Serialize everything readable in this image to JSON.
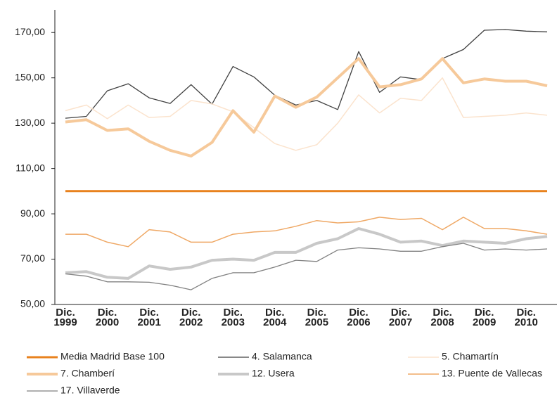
{
  "chart_data": {
    "type": "line",
    "categories": [
      "Dic. 1999",
      null,
      "Dic. 2000",
      null,
      "Dic. 2001",
      null,
      "Dic. 2002",
      null,
      "Dic. 2003",
      null,
      "Dic. 2004",
      null,
      "Dic. 2005",
      null,
      "Dic. 2006",
      null,
      "Dic. 2007",
      null,
      "Dic. 2008",
      null,
      "Dic. 2009",
      null,
      "Dic. 2010",
      null
    ],
    "ylim": [
      50,
      180
    ],
    "yticks": [
      {
        "value": 50,
        "label": "50,00"
      },
      {
        "value": 70,
        "label": "70,00"
      },
      {
        "value": 90,
        "label": "90,00"
      },
      {
        "value": 110,
        "label": "110,00"
      },
      {
        "value": 130,
        "label": "130,00"
      },
      {
        "value": 150,
        "label": "150,00"
      },
      {
        "value": 170,
        "label": "170,00"
      }
    ],
    "grid": false,
    "series": [
      {
        "name": "Media Madrid Base 100",
        "color": "#e8821e",
        "width": 3,
        "values": [
          100,
          100,
          100,
          100,
          100,
          100,
          100,
          100,
          100,
          100,
          100,
          100,
          100,
          100,
          100,
          100,
          100,
          100,
          100,
          100,
          100,
          100,
          100,
          100
        ]
      },
      {
        "name": "4. Salamanca",
        "color": "#404040",
        "width": 1.3,
        "values": [
          132.2,
          133,
          144.3,
          147.4,
          141.2,
          138.7,
          147,
          138.4,
          155,
          150.4,
          142.3,
          138,
          140,
          136,
          161.6,
          143.6,
          150.4,
          149.2,
          158.5,
          162.5,
          171,
          171.3,
          170.6,
          170.3
        ]
      },
      {
        "name": "5. Chamartín",
        "color": "#fbe3cd",
        "width": 1.5,
        "values": [
          135.5,
          138,
          132,
          138,
          132.5,
          133,
          140,
          138.5,
          135,
          128,
          121,
          118,
          120.5,
          130,
          142.5,
          134.5,
          141,
          140,
          150,
          132.5,
          133,
          133.5,
          134.5,
          133.5
        ]
      },
      {
        "name": "7. Chamberí",
        "color": "#f6c99a",
        "width": 4,
        "values": [
          130.5,
          131.5,
          126.8,
          127.5,
          122,
          118,
          115.5,
          121.5,
          135.5,
          126,
          142,
          137,
          141.5,
          150,
          158.5,
          146,
          147,
          149.5,
          158.5,
          147.8,
          149.5,
          148.5,
          148.5,
          146.5
        ]
      },
      {
        "name": "12. Usera",
        "color": "#c8c8c8",
        "width": 4,
        "values": [
          64,
          64.5,
          62,
          61.5,
          67,
          65.5,
          66.5,
          69.5,
          70,
          69.5,
          73,
          73,
          77,
          79,
          83.5,
          81,
          77.5,
          78,
          76,
          78,
          77.5,
          77,
          79,
          80
        ]
      },
      {
        "name": "13. Puente de Vallecas",
        "color": "#efa865",
        "width": 1.5,
        "values": [
          81,
          81,
          77.5,
          75.5,
          83,
          82,
          77.5,
          77.5,
          81,
          82,
          82.5,
          84.5,
          87,
          86,
          86.5,
          88.5,
          87.5,
          88,
          83,
          88.5,
          83.5,
          83.5,
          82.5,
          81
        ]
      },
      {
        "name": "17. Villaverde",
        "color": "#808080",
        "width": 1.3,
        "values": [
          63.5,
          62.5,
          60,
          60,
          59.8,
          58.5,
          56.5,
          61.5,
          64,
          64,
          66.5,
          69.5,
          69,
          74,
          75,
          74.5,
          73.5,
          73.5,
          75.5,
          77,
          74,
          74.5,
          74,
          74.5
        ]
      }
    ]
  }
}
